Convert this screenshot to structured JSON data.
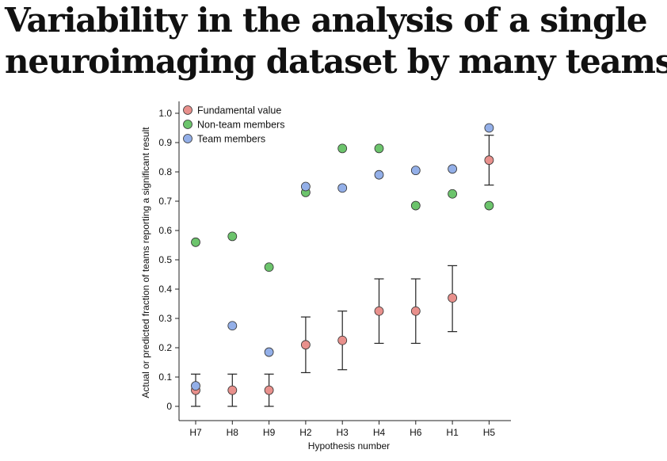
{
  "headline": {
    "line1": "Variability in the analysis of a single",
    "line2": "neuroimaging dataset by many teams"
  },
  "chart_data": {
    "type": "scatter",
    "categories": [
      "H7",
      "H8",
      "H9",
      "H2",
      "H3",
      "H4",
      "H6",
      "H1",
      "H5"
    ],
    "xlabel": "Hypothesis number",
    "ylabel": "Actual or predicted fraction of teams reporting a significant result",
    "ylim": [
      0,
      1.0
    ],
    "yticks": [
      "0",
      "0.1",
      "0.2",
      "0.3",
      "0.4",
      "0.5",
      "0.6",
      "0.7",
      "0.8",
      "0.9",
      "1.0"
    ],
    "grid": false,
    "legend_position": "top-left",
    "series": [
      {
        "name": "Fundamental value",
        "color": "#e8908c",
        "values": [
          0.055,
          0.055,
          0.055,
          0.21,
          0.225,
          0.325,
          0.325,
          0.37,
          0.84
        ],
        "error_low": [
          0.0,
          0.0,
          0.0,
          0.115,
          0.125,
          0.215,
          0.215,
          0.255,
          0.755
        ],
        "error_high": [
          0.11,
          0.11,
          0.11,
          0.305,
          0.325,
          0.435,
          0.435,
          0.48,
          0.925
        ]
      },
      {
        "name": "Non-team members",
        "color": "#6cc46c",
        "values": [
          0.56,
          0.58,
          0.475,
          0.73,
          0.88,
          0.88,
          0.685,
          0.725,
          0.685
        ]
      },
      {
        "name": "Team members",
        "color": "#93afe8",
        "values": [
          0.07,
          0.275,
          0.185,
          0.75,
          0.745,
          0.79,
          0.805,
          0.81,
          0.95
        ]
      }
    ]
  }
}
